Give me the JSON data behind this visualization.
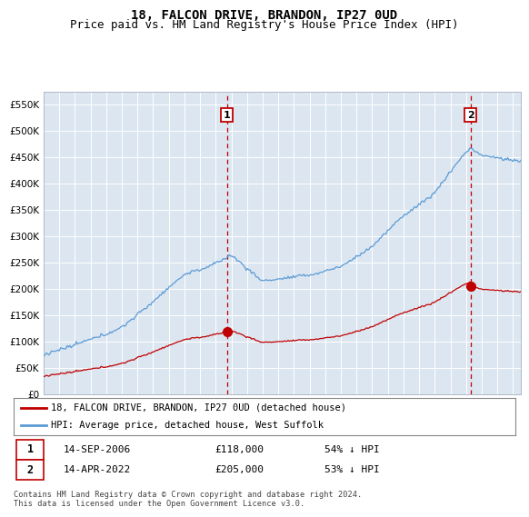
{
  "title": "18, FALCON DRIVE, BRANDON, IP27 0UD",
  "subtitle": "Price paid vs. HM Land Registry's House Price Index (HPI)",
  "ylim": [
    0,
    575000
  ],
  "yticks": [
    0,
    50000,
    100000,
    150000,
    200000,
    250000,
    300000,
    350000,
    400000,
    450000,
    500000,
    550000
  ],
  "ytick_labels": [
    "£0",
    "£50K",
    "£100K",
    "£150K",
    "£200K",
    "£250K",
    "£300K",
    "£350K",
    "£400K",
    "£450K",
    "£500K",
    "£550K"
  ],
  "hpi_color": "#5b9bd5",
  "price_color": "#c00000",
  "vline_color": "#c00000",
  "bg_color": "#dce6f1",
  "sale1_year": 2006.71,
  "sale1_price": 118000,
  "sale2_year": 2022.29,
  "sale2_price": 205000,
  "legend_line1": "18, FALCON DRIVE, BRANDON, IP27 0UD (detached house)",
  "legend_line2": "HPI: Average price, detached house, West Suffolk",
  "footer": "Contains HM Land Registry data © Crown copyright and database right 2024.\nThis data is licensed under the Open Government Licence v3.0.",
  "title_fontsize": 10,
  "subtitle_fontsize": 9
}
